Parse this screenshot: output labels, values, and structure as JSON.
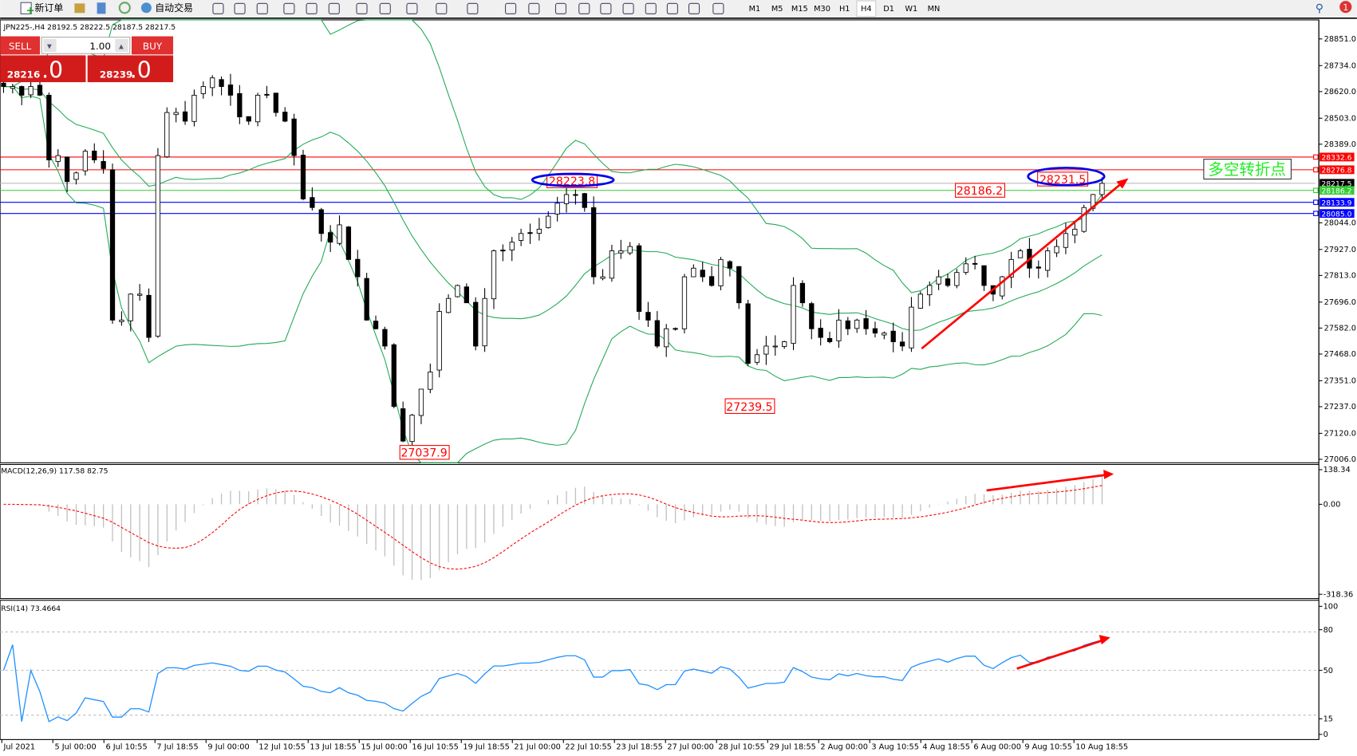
{
  "toolbar": {
    "new_order_label": "新订单",
    "auto_trade_label": "自动交易",
    "timeframes": [
      "M1",
      "M5",
      "M15",
      "M30",
      "H1",
      "H4",
      "D1",
      "W1",
      "MN"
    ],
    "active_timeframe": "H4",
    "notification_count": "1"
  },
  "chart_header": "JPN225-,H4  28192.5 28222.5 28187.5 28217.5",
  "trade_panel": {
    "sell_label": "SELL",
    "buy_label": "BUY",
    "volume": "1.00",
    "sell_price_main": "28216",
    "sell_price_frac": ".0",
    "buy_price_main": "28239",
    "buy_price_frac": ".0"
  },
  "price_axis": [
    "28851.0",
    "28734.0",
    "28620.0",
    "28503.0",
    "28389.0",
    "28044.0",
    "27927.0",
    "27813.0",
    "27696.0",
    "27582.0",
    "27468.0",
    "27351.0",
    "27237.0",
    "27120.0",
    "27006.0"
  ],
  "price_tags": [
    {
      "value": "28332.6",
      "color": "#ff0000"
    },
    {
      "value": "28276.8",
      "color": "#ff0000"
    },
    {
      "value": "28217.5",
      "color": "#000000"
    },
    {
      "value": "28186.2",
      "color": "#33cc33"
    },
    {
      "value": "28133.9",
      "color": "#0000ff"
    },
    {
      "value": "28085.0",
      "color": "#0000ff"
    }
  ],
  "annotations": {
    "low1": "27037.9",
    "low2": "27239.5",
    "high1": "28223.8",
    "high2": "28231.5",
    "level": "28186.2",
    "turning_point": "多空转折点"
  },
  "macd": {
    "label": "MACD(12,26,9) 117.58 82.75",
    "axis": [
      "138.34",
      "0.00",
      "-318.36"
    ]
  },
  "rsi": {
    "label": "RSI(14) 73.4664",
    "axis": [
      "100",
      "80",
      "50",
      "15",
      "0"
    ]
  },
  "date_axis": [
    "Jul 2021",
    "5 Jul 00:00",
    "6 Jul 10:55",
    "7 Jul 18:55",
    "9 Jul 00:00",
    "12 Jul 10:55",
    "13 Jul 18:55",
    "15 Jul 00:00",
    "16 Jul 10:55",
    "19 Jul 18:55",
    "21 Jul 00:00",
    "22 Jul 10:55",
    "23 Jul 18:55",
    "27 Jul 00:00",
    "28 Jul 10:55",
    "29 Jul 18:55",
    "2 Aug 00:00",
    "3 Aug 10:55",
    "4 Aug 18:55",
    "6 Aug 00:00",
    "9 Aug 10:55",
    "10 Aug 18:55"
  ],
  "chart_data": {
    "type": "candlestick",
    "symbol": "JPN225-",
    "timeframe": "H4",
    "ylim": [
      27006,
      28851
    ],
    "indicators": [
      "Bollinger Bands",
      "MACD(12,26,9)",
      "RSI(14)"
    ],
    "closes": [
      28642,
      28642,
      28604,
      28642,
      28604,
      28320,
      28339,
      28225,
      28263,
      28358,
      28320,
      28282,
      27617,
      27617,
      27731,
      27731,
      27541,
      28339,
      28528,
      28528,
      28490,
      28604,
      28642,
      28680,
      28642,
      28604,
      28509,
      28490,
      28604,
      28604,
      28528,
      28490,
      28339,
      28149,
      28111,
      27997,
      27959,
      28035,
      27883,
      27807,
      27617,
      27579,
      27503,
      27238,
      27086,
      27200,
      27314,
      27389,
      27655,
      27712,
      27769,
      27693,
      27503,
      27712,
      27921,
      27921,
      27959,
      27997,
      27997,
      28016,
      28073,
      28130,
      28168,
      28168,
      28111,
      27807,
      27807,
      27921,
      27921,
      27940,
      27655,
      27617,
      27503,
      27579,
      27579,
      27807,
      27845,
      27807,
      27769,
      27883,
      27845,
      27693,
      27427,
      27465,
      27503,
      27503,
      27522,
      27769,
      27693,
      27579,
      27541,
      27522,
      27617,
      27579,
      27617,
      27579,
      27560,
      27560,
      27522,
      27503,
      27674,
      27731,
      27769,
      27807,
      27769,
      27826,
      27864,
      27864,
      27769,
      27731,
      27807,
      27883,
      27921,
      27845,
      27845,
      27921,
      27940,
      27997,
      28016,
      28111,
      28168,
      28217
    ]
  }
}
